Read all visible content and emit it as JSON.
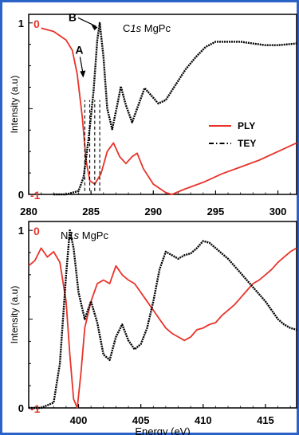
{
  "chart_data": [
    {
      "type": "line",
      "title_prefix": "C",
      "title_italic": "1s",
      "title_suffix": " MgPc",
      "ylabel": "Intensity (a.u)",
      "xlabel": "",
      "xlim": [
        280,
        301.5
      ],
      "ylim": [
        0,
        1.05
      ],
      "x_ticks": [
        280,
        285,
        290,
        295,
        300
      ],
      "y_ticks_left": [
        "0",
        "1"
      ],
      "y_ticks_right": [
        "0",
        "-1"
      ],
      "annotations": [
        {
          "text": "A",
          "x": 284.5,
          "y": 0.82
        },
        {
          "text": "B",
          "x": 284.6,
          "y": 1.03
        }
      ],
      "legend": [
        {
          "name": "PLY",
          "color": "#e8332a",
          "dash": "solid"
        },
        {
          "name": "TEY",
          "color": "#000000",
          "dash": "dashdot"
        }
      ],
      "legend_position": "center-right",
      "series": [
        {
          "name": "PLY",
          "color": "#e8332a",
          "x": [
            281,
            282,
            283,
            283.5,
            283.9,
            284.3,
            284.6,
            284.9,
            285.3,
            285.8,
            286.3,
            286.8,
            287.3,
            287.8,
            288.3,
            288.7,
            289.2,
            290,
            291,
            291.5,
            292.5,
            294,
            295.5,
            297,
            298.5,
            300,
            301.5
          ],
          "y": [
            0.97,
            0.95,
            0.9,
            0.84,
            0.7,
            0.45,
            0.2,
            0.08,
            0.06,
            0.12,
            0.25,
            0.3,
            0.22,
            0.18,
            0.22,
            0.24,
            0.15,
            0.06,
            0.01,
            0.0,
            0.03,
            0.07,
            0.12,
            0.16,
            0.2,
            0.25,
            0.3
          ]
        },
        {
          "name": "TEY",
          "color": "#000000",
          "x": [
            282,
            283,
            284,
            284.4,
            284.8,
            285.2,
            285.5,
            285.7,
            286,
            286.3,
            286.7,
            287.1,
            287.4,
            287.8,
            288.3,
            288.8,
            289.3,
            289.8,
            290.4,
            291,
            291.8,
            292.6,
            293.4,
            294.2,
            295,
            296,
            297,
            298,
            299,
            300,
            301.5
          ],
          "y": [
            0.0,
            0.0,
            0.02,
            0.1,
            0.32,
            0.6,
            0.9,
            1.0,
            0.8,
            0.5,
            0.38,
            0.52,
            0.63,
            0.52,
            0.42,
            0.52,
            0.62,
            0.58,
            0.53,
            0.55,
            0.64,
            0.73,
            0.8,
            0.86,
            0.89,
            0.89,
            0.89,
            0.88,
            0.87,
            0.87,
            0.88
          ]
        }
      ]
    },
    {
      "type": "line",
      "title_prefix": "N",
      "title_italic": "1s",
      "title_suffix": " MgPc",
      "ylabel": "Intensity (a.u)",
      "xlabel": "Energy (eV)",
      "xlim": [
        396,
        417.5
      ],
      "ylim": [
        0,
        1.05
      ],
      "x_ticks": [
        400,
        405,
        410,
        415
      ],
      "y_ticks_left": [
        "0",
        "1"
      ],
      "y_ticks_right": [
        "0",
        "-1"
      ],
      "series": [
        {
          "name": "PLY",
          "color": "#e8332a",
          "x": [
            396,
            396.5,
            397,
            397.5,
            398,
            398.5,
            399,
            399.3,
            399.6,
            399.9,
            400.2,
            400.5,
            401,
            401.5,
            402,
            402.5,
            403,
            403.5,
            404,
            404.5,
            405,
            405.5,
            406,
            406.5,
            407,
            407.5,
            408,
            408.5,
            409,
            409.5,
            410,
            410.5,
            411,
            411.5,
            412,
            412.5,
            413,
            413.5,
            414,
            414.5,
            415,
            415.5,
            416,
            416.5,
            417,
            417.5
          ],
          "y": [
            0.8,
            0.83,
            0.9,
            0.85,
            0.88,
            0.82,
            0.6,
            0.3,
            0.05,
            0.0,
            0.2,
            0.45,
            0.6,
            0.7,
            0.72,
            0.7,
            0.8,
            0.75,
            0.72,
            0.7,
            0.65,
            0.6,
            0.55,
            0.5,
            0.45,
            0.42,
            0.4,
            0.38,
            0.4,
            0.44,
            0.45,
            0.47,
            0.48,
            0.52,
            0.55,
            0.58,
            0.62,
            0.66,
            0.7,
            0.72,
            0.75,
            0.78,
            0.82,
            0.85,
            0.88,
            0.9
          ]
        },
        {
          "name": "TEY",
          "color": "#000000",
          "x": [
            396,
            397,
            398,
            398.5,
            399,
            399.3,
            399.6,
            400,
            400.5,
            401,
            401.5,
            402,
            402.5,
            403,
            403.5,
            404,
            404.5,
            405,
            405.5,
            406,
            406.5,
            407,
            407.5,
            408,
            408.5,
            409,
            409.5,
            410,
            410.5,
            411,
            411.5,
            412,
            412.5,
            413,
            413.5,
            414,
            414.5,
            415,
            415.5,
            416,
            416.5,
            417,
            417.5
          ],
          "y": [
            0.0,
            0.0,
            0.03,
            0.25,
            0.75,
            1.0,
            0.9,
            0.65,
            0.5,
            0.6,
            0.48,
            0.3,
            0.27,
            0.4,
            0.47,
            0.38,
            0.33,
            0.36,
            0.45,
            0.6,
            0.78,
            0.88,
            0.86,
            0.84,
            0.86,
            0.87,
            0.9,
            0.94,
            0.93,
            0.9,
            0.87,
            0.84,
            0.8,
            0.76,
            0.72,
            0.68,
            0.64,
            0.6,
            0.55,
            0.5,
            0.47,
            0.45,
            0.44
          ]
        }
      ]
    }
  ]
}
